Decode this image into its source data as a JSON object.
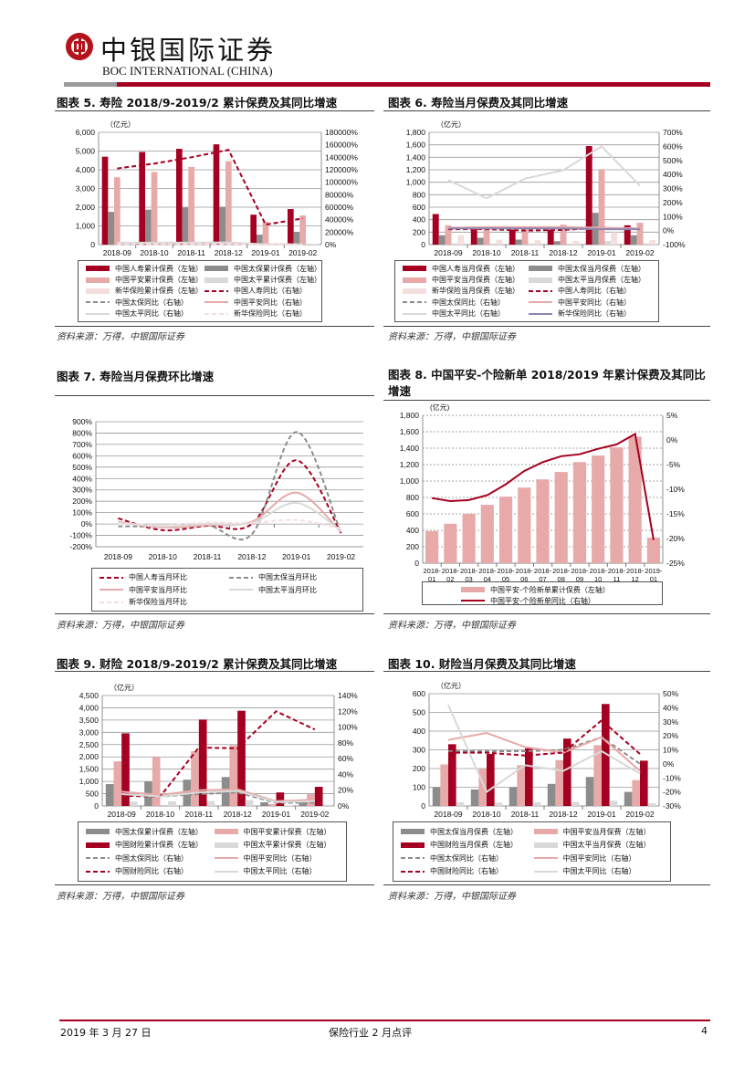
{
  "header": {
    "brand_cn": "中银国际证券",
    "brand_en": "BOC INTERNATIONAL (CHINA)"
  },
  "footer": {
    "date": "2019 年 3 月 27 日",
    "doc_title": "保险行业 2 月点评",
    "page": "4"
  },
  "source_text": "资料来源：万得，中银国际证券",
  "colors": {
    "life": "#a50021",
    "cpic": "#8c8c8c",
    "pingan": "#e8a9a9",
    "taiping": "#d9d9d9",
    "nci": "#f5dede",
    "nci_line": "#8e86b0"
  },
  "chart_data": [
    {
      "type": "bar+line",
      "title": "图表 5. 寿险 2018/9-2019/2 累计保费及其同比增速",
      "unit": "（亿元）",
      "categories": [
        "2018-09",
        "2018-10",
        "2018-11",
        "2018-12",
        "2019-01",
        "2019-02"
      ],
      "ylim": [
        0,
        6000
      ],
      "ytick_labels": [
        "0",
        "1,000",
        "2,000",
        "3,000",
        "4,000",
        "5,000",
        "6,000"
      ],
      "y2lim": [
        0,
        180000
      ],
      "y2tick_labels": [
        "0%",
        "20000%",
        "40000%",
        "60000%",
        "80000%",
        "100000%",
        "120000%",
        "140000%",
        "160000%",
        "180000%"
      ],
      "series": [
        {
          "name": "中国人寿累计保费（左轴）",
          "kind": "bar",
          "color": "#a50021",
          "values": [
            4700,
            4950,
            5120,
            5360,
            1600,
            1900
          ]
        },
        {
          "name": "中国太保累计保费（左轴）",
          "kind": "bar",
          "color": "#8c8c8c",
          "values": [
            1750,
            1870,
            1990,
            2020,
            530,
            680
          ]
        },
        {
          "name": "中国平安累计保费（左轴）",
          "kind": "bar",
          "color": "#e8a9a9",
          "values": [
            3600,
            3880,
            4150,
            4460,
            1220,
            1560
          ]
        },
        {
          "name": "中国太平累计保费（左轴）",
          "kind": "bar",
          "color": "#d9d9d9",
          "values": [
            110,
            115,
            120,
            130,
            30,
            45
          ]
        },
        {
          "name": "新华保险累计保费（左轴）",
          "kind": "bar",
          "color": "#f5dede",
          "values": [
            100,
            105,
            110,
            120,
            30,
            40
          ]
        },
        {
          "name": "中国人寿同比（右轴）",
          "kind": "line",
          "axis": "right",
          "dash": true,
          "color": "#a50021",
          "values": [
            122000,
            130000,
            140000,
            152000,
            32000,
            42000
          ]
        },
        {
          "name": "中国太保同比（右轴）",
          "kind": "line",
          "axis": "right",
          "dash": true,
          "color": "#8c8c8c",
          "values": [
            1500,
            1500,
            1600,
            1700,
            300,
            300
          ]
        },
        {
          "name": "中国平安同比（右轴）",
          "kind": "line",
          "axis": "right",
          "color": "#e8a9a9",
          "values": [
            2000,
            2000,
            2100,
            2200,
            400,
            500
          ]
        },
        {
          "name": "中国太平同比（右轴）",
          "kind": "line",
          "axis": "right",
          "color": "#d9d9d9",
          "values": [
            3000,
            3000,
            3200,
            3500,
            500,
            500
          ]
        },
        {
          "name": "新华保险同比（右轴）",
          "kind": "line",
          "axis": "right",
          "dash": true,
          "color": "#f5dede",
          "values": [
            1000,
            1000,
            1100,
            1200,
            200,
            200
          ]
        }
      ]
    },
    {
      "type": "bar+line",
      "title": "图表 6. 寿险当月保费及其同比增速",
      "unit": "（亿元）",
      "categories": [
        "2018-09",
        "2018-10",
        "2018-11",
        "2018-12",
        "2019-01",
        "2019-02"
      ],
      "ylim": [
        0,
        1800
      ],
      "ytick_labels": [
        "0",
        "200",
        "400",
        "600",
        "800",
        "1,000",
        "1,200",
        "1,400",
        "1,600",
        "1,800"
      ],
      "y2lim": [
        -100,
        700
      ],
      "y2tick_labels": [
        "-100%",
        "0%",
        "100%",
        "200%",
        "300%",
        "400%",
        "500%",
        "600%",
        "700%"
      ],
      "series": [
        {
          "name": "中国人寿当月保费（左轴）",
          "kind": "bar",
          "color": "#a50021",
          "values": [
            490,
            260,
            240,
            240,
            1580,
            310
          ]
        },
        {
          "name": "中国太保当月保费（左轴）",
          "kind": "bar",
          "color": "#8c8c8c",
          "values": [
            150,
            110,
            80,
            55,
            510,
            150
          ]
        },
        {
          "name": "中国平安当月保费（左轴）",
          "kind": "bar",
          "color": "#e8a9a9",
          "values": [
            310,
            270,
            270,
            320,
            1210,
            350
          ]
        },
        {
          "name": "中国太平当月保费（左轴）",
          "kind": "bar",
          "color": "#d9d9d9",
          "values": [
            20,
            18,
            18,
            18,
            60,
            20
          ]
        },
        {
          "name": "新华保险当月保费（左轴）",
          "kind": "bar",
          "color": "#f5dede",
          "values": [
            150,
            80,
            70,
            60,
            200,
            70
          ]
        },
        {
          "name": "中国人寿同比（右轴）",
          "kind": "line",
          "axis": "right",
          "dash": true,
          "color": "#a50021",
          "values": [
            10,
            10,
            0,
            5,
            20,
            10
          ]
        },
        {
          "name": "中国太保同比（右轴）",
          "kind": "line",
          "axis": "right",
          "dash": true,
          "color": "#8c8c8c",
          "values": [
            15,
            15,
            15,
            15,
            15,
            15
          ]
        },
        {
          "name": "中国平安同比（右轴）",
          "kind": "line",
          "axis": "right",
          "color": "#e8a9a9",
          "values": [
            20,
            25,
            25,
            25,
            20,
            15
          ]
        },
        {
          "name": "中国太平同比（右轴）",
          "kind": "line",
          "axis": "right",
          "color": "#d9d9d9",
          "values": [
            360,
            230,
            370,
            430,
            600,
            320
          ]
        },
        {
          "name": "新华保险同比（右轴）",
          "kind": "line",
          "axis": "right",
          "color": "#8e86b0",
          "values": [
            15,
            15,
            15,
            15,
            10,
            10
          ]
        }
      ]
    },
    {
      "type": "line",
      "title": "图表 7. 寿险当月保费环比增速",
      "unit": "",
      "categories": [
        "2018-09",
        "2018-10",
        "2018-11",
        "2018-12",
        "2019-01",
        "2019-02"
      ],
      "ylim": [
        -200,
        900
      ],
      "ytick_labels": [
        "-200%",
        "-100%",
        "0%",
        "100%",
        "200%",
        "300%",
        "400%",
        "500%",
        "600%",
        "700%",
        "800%",
        "900%"
      ],
      "smooth": true,
      "series": [
        {
          "name": "中国人寿当月环比",
          "kind": "line",
          "dash": true,
          "color": "#a50021",
          "values": [
            50,
            -55,
            -15,
            0,
            560,
            -80
          ]
        },
        {
          "name": "中国太保当月环比",
          "kind": "line",
          "dash": true,
          "color": "#8c8c8c",
          "values": [
            -20,
            -20,
            -10,
            -90,
            810,
            -80
          ]
        },
        {
          "name": "中国平安当月环比",
          "kind": "line",
          "color": "#e8a9a9",
          "values": [
            20,
            -30,
            -10,
            20,
            275,
            -70
          ]
        },
        {
          "name": "中国太平当月环比",
          "kind": "line",
          "color": "#d9d9d9",
          "values": [
            10,
            -20,
            0,
            10,
            185,
            -60
          ]
        },
        {
          "name": "新华保险当月环比",
          "kind": "line",
          "dash": true,
          "color": "#f5dede",
          "values": [
            5,
            -10,
            10,
            10,
            35,
            -40
          ]
        }
      ]
    },
    {
      "type": "bar+line",
      "title": "图表 8. 中国平安-个险新单 2018/2019 年累计保费及其同比增速",
      "unit": "(亿元)",
      "categories": [
        "2018-01",
        "2018-02",
        "2018-03",
        "2018-04",
        "2018-05",
        "2018-06",
        "2018-07",
        "2018-08",
        "2018-09",
        "2018-10",
        "2018-11",
        "2018-12",
        "2019-01"
      ],
      "ylim": [
        0,
        1800
      ],
      "ytick_labels": [
        "0",
        "200",
        "400",
        "600",
        "800",
        "1,000",
        "1,200",
        "1,400",
        "1,600",
        "1,800"
      ],
      "y2lim": [
        -25,
        5
      ],
      "y2tick_labels": [
        "-25%",
        "-20%",
        "-15%",
        "-10%",
        "-5%",
        "0%",
        "5%"
      ],
      "dotted_grid": true,
      "series": [
        {
          "name": "中国平安-个险新单累计保费（左轴）",
          "kind": "bar",
          "color": "#e8a9a9",
          "values": [
            390,
            480,
            600,
            710,
            810,
            920,
            1020,
            1110,
            1230,
            1310,
            1410,
            1540,
            310
          ]
        },
        {
          "name": "中国平安-个险新单同比（右轴）",
          "kind": "line",
          "axis": "right",
          "color": "#a50021",
          "values": [
            -11.8,
            -12.4,
            -12.2,
            -11.2,
            -9.0,
            -6.3,
            -4.5,
            -3.3,
            -2.9,
            -1.8,
            -0.9,
            1.2,
            -20.3
          ]
        }
      ]
    },
    {
      "type": "bar+line",
      "title": "图表 9. 财险 2018/9-2019/2 累计保费及其同比增速",
      "unit": "（亿元）",
      "categories": [
        "2018-09",
        "2018-10",
        "2018-11",
        "2018-12",
        "2019-01",
        "2019-02"
      ],
      "ylim": [
        0,
        4500
      ],
      "ytick_labels": [
        "0",
        "500",
        "1,000",
        "1,500",
        "2,000",
        "2,500",
        "3,000",
        "3,500",
        "4,000",
        "4,500"
      ],
      "y2lim": [
        0,
        140
      ],
      "y2tick_labels": [
        "0%",
        "20%",
        "40%",
        "60%",
        "80%",
        "100%",
        "120%",
        "140%"
      ],
      "series": [
        {
          "name": "中国太保累计保费（左轴）",
          "kind": "bar",
          "color": "#8c8c8c",
          "values": [
            890,
            1000,
            1070,
            1180,
            150,
            140
          ]
        },
        {
          "name": "中国平安累计保费（左轴）",
          "kind": "bar",
          "color": "#e8a9a9",
          "values": [
            1820,
            2000,
            2230,
            2470,
            80,
            480
          ]
        },
        {
          "name": "中国财险累计保费（左轴）",
          "kind": "bar",
          "color": "#a50021",
          "values": [
            2960,
            null,
            3520,
            3880,
            550,
            780
          ]
        },
        {
          "name": "中国太平累计保费（左轴）",
          "kind": "bar",
          "color": "#d9d9d9",
          "values": [
            180,
            190,
            200,
            240,
            20,
            50
          ]
        },
        {
          "name": "中国太保同比（右轴）",
          "kind": "line",
          "axis": "right",
          "dash": true,
          "color": "#8c8c8c",
          "values": [
            13,
            12,
            15,
            17,
            4,
            4
          ]
        },
        {
          "name": "中国平安同比（右轴）",
          "kind": "line",
          "axis": "right",
          "color": "#e8a9a9",
          "values": [
            18,
            14,
            20,
            21,
            6,
            8
          ]
        },
        {
          "name": "中国财险同比（右轴）",
          "kind": "line",
          "axis": "right",
          "dash": true,
          "color": "#a50021",
          "values": [
            13,
            12,
            74,
            73,
            120,
            97
          ]
        },
        {
          "name": "中国太平同比（右轴）",
          "kind": "line",
          "axis": "right",
          "color": "#d9d9d9",
          "values": [
            15,
            12,
            17,
            19,
            5,
            6
          ]
        }
      ]
    },
    {
      "type": "bar+line",
      "title": "图表 10. 财险当月保费及其同比增速",
      "unit": "（亿元）",
      "categories": [
        "2018-09",
        "2018-10",
        "2018-11",
        "2018-12",
        "2019-01",
        "2019-02"
      ],
      "ylim": [
        0,
        600
      ],
      "ytick_labels": [
        "0",
        "100",
        "200",
        "300",
        "400",
        "500",
        "600"
      ],
      "y2lim": [
        -30,
        50
      ],
      "y2tick_labels": [
        "-30%",
        "-20%",
        "-10%",
        "0%",
        "10%",
        "20%",
        "30%",
        "40%",
        "50%"
      ],
      "series": [
        {
          "name": "中国太保当月保费（左轴）",
          "kind": "bar",
          "color": "#8c8c8c",
          "values": [
            100,
            88,
            100,
            118,
            155,
            75
          ]
        },
        {
          "name": "中国平安当月保费（左轴）",
          "kind": "bar",
          "color": "#e8a9a9",
          "values": [
            222,
            200,
            218,
            245,
            325,
            138
          ]
        },
        {
          "name": "中国财险当月保费（左轴）",
          "kind": "bar",
          "color": "#a50021",
          "values": [
            330,
            278,
            308,
            360,
            545,
            242
          ]
        },
        {
          "name": "中国太平当月保费（左轴）",
          "kind": "bar",
          "color": "#d9d9d9",
          "values": [
            20,
            18,
            20,
            22,
            28,
            15
          ]
        },
        {
          "name": "中国太保同比（右轴）",
          "kind": "line",
          "axis": "right",
          "dash": true,
          "color": "#8c8c8c",
          "values": [
            9,
            9,
            9,
            10,
            19,
            0
          ]
        },
        {
          "name": "中国平安同比（右轴）",
          "kind": "line",
          "axis": "right",
          "color": "#e8a9a9",
          "values": [
            17,
            22,
            12,
            8,
            19,
            -5
          ]
        },
        {
          "name": "中国财险同比（右轴）",
          "kind": "line",
          "axis": "right",
          "dash": true,
          "color": "#a50021",
          "values": [
            8,
            8,
            6,
            8,
            31,
            7
          ]
        },
        {
          "name": "中国太平同比（右轴）",
          "kind": "line",
          "axis": "right",
          "color": "#d9d9d9",
          "values": [
            42,
            -20,
            -1,
            -5,
            9,
            -7
          ]
        }
      ]
    }
  ]
}
